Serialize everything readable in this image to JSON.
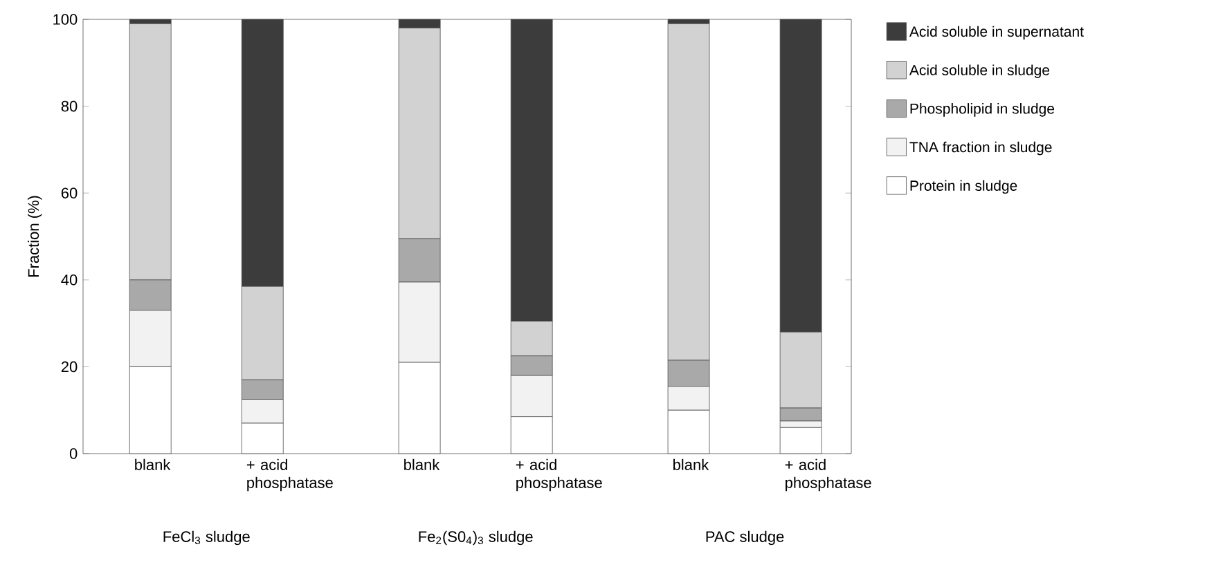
{
  "chart_data": {
    "type": "bar",
    "stacked": true,
    "ylabel": "Fraction (%)",
    "categories": [
      "blank",
      "+ acid phosphatase",
      "blank",
      "+ acid phosphatase",
      "blank",
      "+ acid phosphatase"
    ],
    "series": [
      {
        "name": "Protein in sludge",
        "color": "#ffffff",
        "values": [
          20,
          7,
          21,
          8.5,
          10,
          6
        ]
      },
      {
        "name": "TNA fraction in sludge",
        "color": "#f2f2f2",
        "values": [
          13,
          5.5,
          18.5,
          9.5,
          5.5,
          1.5
        ]
      },
      {
        "name": "Phospholipid in sludge",
        "color": "#a9a9a9",
        "values": [
          7,
          4.5,
          10,
          4.5,
          6,
          3
        ]
      },
      {
        "name": "Acid soluble in sludge",
        "color": "#d2d2d2",
        "values": [
          59,
          21.5,
          48.5,
          8,
          77.5,
          17.5
        ]
      },
      {
        "name": "Acid soluble in supernatant",
        "color": "#3c3c3c",
        "values": [
          1,
          61.5,
          2,
          69.5,
          1,
          72
        ]
      }
    ],
    "ylim": [
      0,
      100
    ],
    "yticks": [
      0,
      20,
      40,
      60,
      80,
      100
    ],
    "grid": false,
    "legend": "right",
    "annotations": [
      "FeCl$_{3}$ sludge",
      "Fe$_{2}$(S0$_{4}$)$_{3}$ sludge",
      "PAC sludge"
    ]
  }
}
